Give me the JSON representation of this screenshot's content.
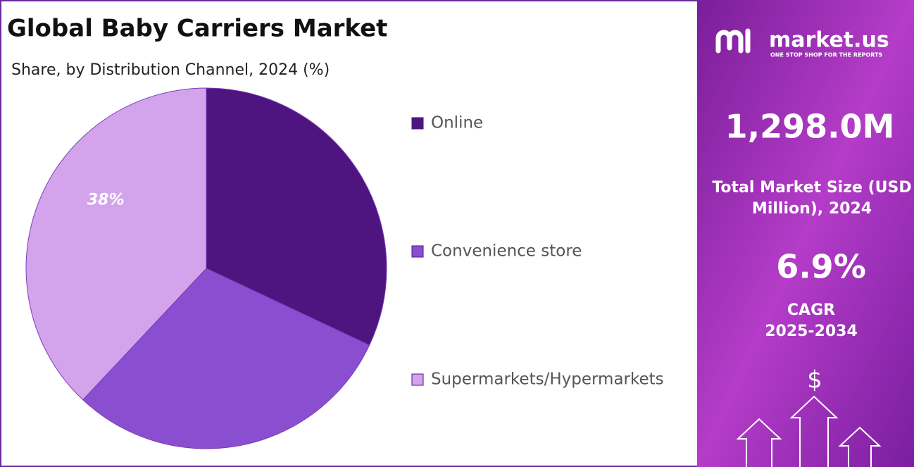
{
  "chart_data": {
    "type": "pie",
    "title": "Global Baby Carriers Market",
    "subtitle": "Share, by Distribution Channel, 2024 (%)",
    "categories": [
      "Online",
      "Convenience store",
      "Supermarkets/Hypermarkets"
    ],
    "values": [
      32,
      30,
      38
    ],
    "value_labels": [
      null,
      null,
      "38%"
    ],
    "colors": [
      "#4e1580",
      "#8a4fd0",
      "#d3a4ec"
    ],
    "legend": "right"
  },
  "panel": {
    "brand": "market.us",
    "tagline": "ONE STOP SHOP FOR THE REPORTS",
    "market_size": "1,298.0M",
    "market_size_label": "Total Market Size (USD Million), 2024",
    "cagr": "6.9%",
    "cagr_label": "CAGR",
    "cagr_period": "2025-2034",
    "currency_icon": "$"
  }
}
